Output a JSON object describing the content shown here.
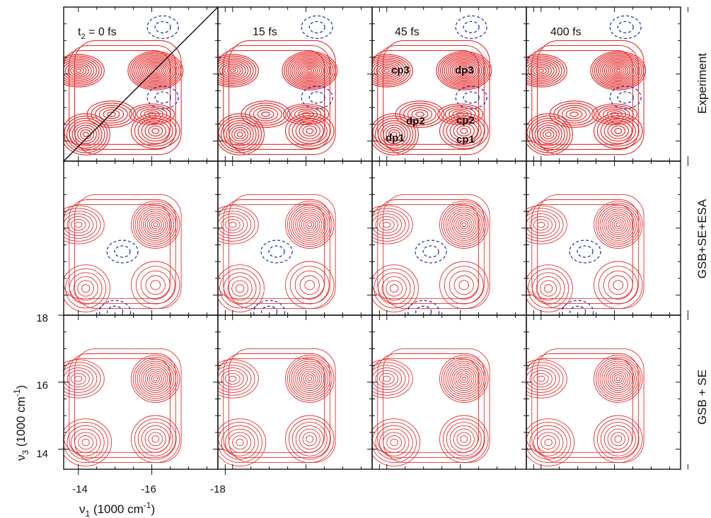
{
  "chart_data": {
    "type": "contour",
    "grid": {
      "rows": 3,
      "columns": 4
    },
    "columns": [
      {
        "t2_label_prefix": "t",
        "t2_label_sub": "2",
        "t2_label_suffix": " = 0 fs",
        "t2_fs": 0
      },
      {
        "t2_label": "15 fs",
        "t2_fs": 15
      },
      {
        "t2_label": "45 fs",
        "t2_fs": 45
      },
      {
        "t2_label": "400 fs",
        "t2_fs": 400
      }
    ],
    "rows": [
      {
        "label": "Experiment"
      },
      {
        "label": "GSB+SE+ESA"
      },
      {
        "label": "GSB + SE"
      }
    ],
    "x_axis": {
      "label_main": "ν",
      "label_sub": "1",
      "label_rest": "  (1000 cm",
      "label_sup": "-1",
      "label_close": ")",
      "range": [
        -13.6,
        -17.8
      ],
      "tick_labels": [
        "-14",
        "-16",
        "-18"
      ],
      "tick_values": [
        -14,
        -16,
        -18
      ],
      "minor_ticks": [
        -14.5,
        -15,
        -15.5,
        -16.5,
        -17,
        -17.5
      ]
    },
    "y_axis": {
      "label_main": "ν",
      "label_sub": "3",
      "label_rest": "  (1000 cm",
      "label_sup": "-1",
      "label_close": ")",
      "range": [
        13.4,
        18.0
      ],
      "tick_labels": [
        "14",
        "16",
        "18"
      ],
      "tick_values": [
        14,
        16,
        18
      ],
      "minor_ticks": [
        14.5,
        15,
        15.5,
        16.5,
        17,
        17.5
      ]
    },
    "peak_labels": [
      "cp3",
      "dp3",
      "dp2",
      "cp2",
      "dp1",
      "cp1"
    ],
    "peaks": {
      "dp1": [
        -14.2,
        14.2
      ],
      "dp2": [
        -14.9,
        14.8
      ],
      "dp3": [
        -16.1,
        16.1
      ],
      "cp1": [
        -16.1,
        14.3
      ],
      "cp2": [
        -16.0,
        14.8
      ],
      "cp3": [
        -14.0,
        16.1
      ]
    },
    "positive_color": "#e53030",
    "negative_color": "#1a2aa0",
    "negative_style": "dashed",
    "diagonal_line_panel": "Experiment, t2 = 0 fs"
  }
}
